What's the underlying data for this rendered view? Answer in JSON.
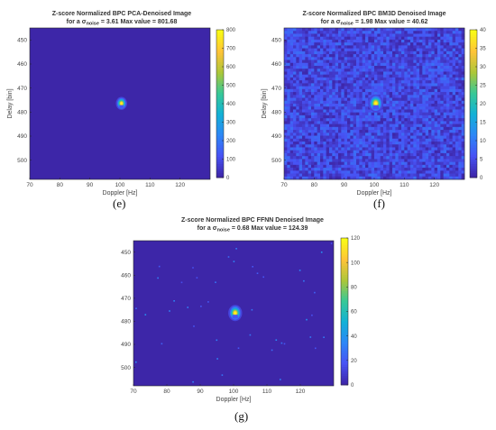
{
  "chart_data": [
    {
      "type": "heatmap",
      "panel": "e",
      "title": "Z-score Normalized BPC PCA-Denoised Image",
      "subtitle_prefix": "for a σ",
      "subtitle_sub": "noise",
      "subtitle_rest": "= 3.61 Max value = 801.68",
      "xlabel": "Doppler [Hz]",
      "ylabel": "Delay [bin]",
      "xlim": [
        70,
        130
      ],
      "ylim": [
        445,
        508
      ],
      "y_reversed": true,
      "xticks": [
        70,
        80,
        90,
        100,
        110,
        120
      ],
      "yticks": [
        450,
        460,
        470,
        480,
        490,
        500
      ],
      "colorbar_range": [
        0,
        800
      ],
      "colorbar_ticks": [
        0,
        100,
        200,
        300,
        400,
        500,
        600,
        700,
        800
      ],
      "max_value": 801.68,
      "peak": {
        "doppler": 100.5,
        "delay": 476
      },
      "noise_level": "low",
      "colormap": "parula"
    },
    {
      "type": "heatmap",
      "panel": "f",
      "title": "Z-score Normalized BPC BM3D Denoised Image",
      "subtitle_prefix": "for a σ",
      "subtitle_sub": "noise",
      "subtitle_rest": "= 1.98 Max value = 40.62",
      "xlabel": "Doppler [Hz]",
      "ylabel": "Delay [bin]",
      "xlim": [
        70,
        130
      ],
      "ylim": [
        445,
        508
      ],
      "y_reversed": true,
      "xticks": [
        70,
        80,
        90,
        100,
        110,
        120
      ],
      "yticks": [
        450,
        460,
        470,
        480,
        490,
        500
      ],
      "colorbar_range": [
        0,
        40
      ],
      "colorbar_ticks": [
        0,
        5,
        10,
        15,
        20,
        25,
        30,
        35,
        40
      ],
      "max_value": 40.62,
      "peak": {
        "doppler": 100.5,
        "delay": 476
      },
      "noise_level": "high",
      "colormap": "parula"
    },
    {
      "type": "heatmap",
      "panel": "g",
      "title": "Z-score Normalized BPC FFNN Denoised Image",
      "subtitle_prefix": "for a σ",
      "subtitle_sub": "noise",
      "subtitle_rest": "= 0.68 Max value = 124.39",
      "xlabel": "Doppler [Hz]",
      "ylabel": "Delay [bin]",
      "xlim": [
        70,
        130
      ],
      "ylim": [
        445,
        508
      ],
      "y_reversed": true,
      "xticks": [
        70,
        80,
        90,
        100,
        110,
        120
      ],
      "yticks": [
        450,
        460,
        470,
        480,
        490,
        500
      ],
      "colorbar_range": [
        0,
        120
      ],
      "colorbar_ticks": [
        0,
        20,
        40,
        60,
        80,
        100,
        120
      ],
      "max_value": 124.39,
      "peak": {
        "doppler": 100.5,
        "delay": 476
      },
      "noise_level": "sparse",
      "colormap": "parula"
    }
  ],
  "captions": [
    "(e)",
    "(f)",
    "(g)"
  ],
  "colors": {
    "background": "#3d26a8",
    "axis_text": "#444444"
  }
}
